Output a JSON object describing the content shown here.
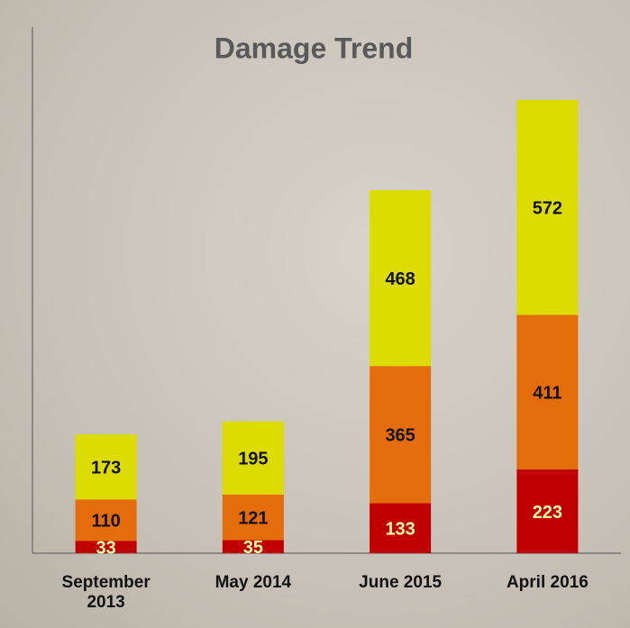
{
  "chart_data": {
    "type": "stacked-bar",
    "title": "Damage Trend",
    "categories": [
      "September 2013",
      "May 2014",
      "June 2015",
      "April 2016"
    ],
    "series": [
      {
        "color": "#c00000",
        "values": [
          33,
          35,
          133,
          223
        ]
      },
      {
        "color": "#e46c0a",
        "values": [
          110,
          121,
          365,
          411
        ]
      },
      {
        "color": "#dcdc00",
        "values": [
          173,
          195,
          468,
          572
        ]
      }
    ],
    "ylim": [
      0,
      1400
    ]
  }
}
